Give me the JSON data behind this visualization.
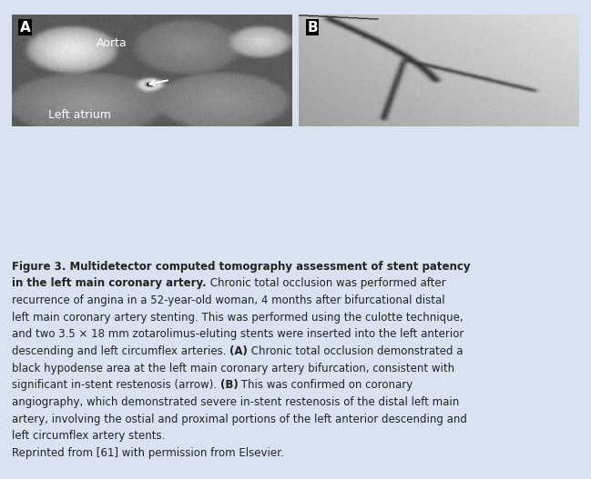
{
  "fig_width": 6.49,
  "fig_height": 5.27,
  "background_color": "#d9e2f0",
  "image_panel_bg": "#c8d8ee",
  "panel_a_label": "A",
  "panel_b_label": "B",
  "label_A_text": "Aorta",
  "label_B_text": "Left atrium",
  "caption_bold": "Figure 3. Multidetector computed tomography assessment of stent patency in the left main coronary artery.",
  "caption_normal": " Chronic total occlusion was performed after recurrence of angina in a 52-year-old woman, 4 months after bifurcational distal left main coronary artery stenting. This was performed using the culotte technique, and two 3.5 × 18 mm zotarolimus-eluting stents were inserted into the left anterior descending and left circumflex arteries. ",
  "caption_A_bold": "(A)",
  "caption_A_normal": " Chronic total occlusion demonstrated a black hypodense area at the left main coronary artery bifurcation, consistent with significant in-stent restenosis (arrow). ",
  "caption_B_bold": "(B)",
  "caption_B_normal": " This was confirmed on coronary angiography, which demonstrated severe in-stent restenosis of the distal left main artery, involving the ostial and proximal portions of the left anterior descending and left circumflex artery stents.",
  "caption_reprint": "Reprinted from [61] with permission from Elsevier.",
  "caption_fontsize": 8.5,
  "caption_color": "#222222",
  "panel_label_fontsize": 11,
  "label_text_fontsize": 9
}
